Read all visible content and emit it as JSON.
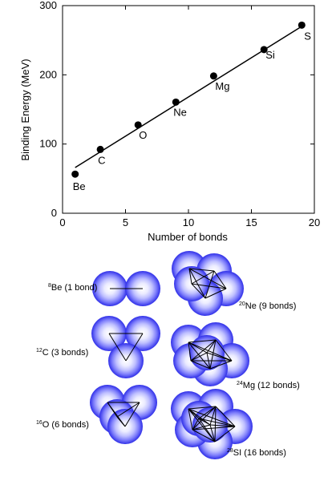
{
  "chart_data": {
    "type": "scatter",
    "xlabel": "Number of bonds",
    "ylabel": "Binding Energy (MeV)",
    "xlim": [
      0,
      20
    ],
    "ylim": [
      0,
      300
    ],
    "xticks": [
      0,
      5,
      10,
      15,
      20
    ],
    "yticks": [
      0,
      100,
      200,
      300
    ],
    "points": [
      {
        "label": "Be",
        "x": 1,
        "y": 56.5
      },
      {
        "label": "C",
        "x": 3,
        "y": 92.2
      },
      {
        "label": "O",
        "x": 6,
        "y": 127.6
      },
      {
        "label": "Ne",
        "x": 9,
        "y": 160.6
      },
      {
        "label": "Mg",
        "x": 12,
        "y": 198.3
      },
      {
        "label": "Si",
        "x": 16,
        "y": 236.5
      },
      {
        "label": "S",
        "x": 19,
        "y": 271.8
      }
    ],
    "fit_line": {
      "x1": 1,
      "y1": 66,
      "x2": 19,
      "y2": 270
    }
  },
  "clusters": [
    {
      "sup": "8",
      "name": "Be",
      "bonds": "(1 bond)"
    },
    {
      "sup": "12",
      "name": "C",
      "bonds": "(3 bonds)"
    },
    {
      "sup": "16",
      "name": "O",
      "bonds": "(6 bonds)"
    },
    {
      "sup": "20",
      "name": "Ne",
      "bonds": "(9 bonds)"
    },
    {
      "sup": "24",
      "name": "Mg",
      "bonds": "(12 bonds)"
    },
    {
      "sup": "28",
      "name": "SI",
      "bonds": "(16 bonds)"
    }
  ],
  "colors": {
    "sphere_outer": "#2a2ae6",
    "sphere_inner": "#eeeeff",
    "marker": "#000000"
  }
}
